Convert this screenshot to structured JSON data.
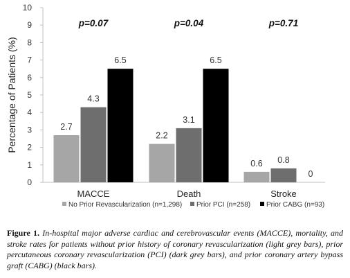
{
  "chart_data": {
    "type": "bar",
    "categories": [
      "MACCE",
      "Death",
      "Stroke"
    ],
    "series": [
      {
        "name": "No Prior Revascularization (n=1,298)",
        "values": [
          2.7,
          2.2,
          0.6
        ],
        "color": "#a6a6a6"
      },
      {
        "name": "Prior PCI (n=258)",
        "values": [
          4.3,
          3.1,
          0.8
        ],
        "color": "#6e6e6e"
      },
      {
        "name": "Prior CABG (n=93)",
        "values": [
          6.5,
          6.5,
          0
        ],
        "color": "#000000"
      }
    ],
    "data_labels": [
      [
        "2.7",
        "2.2",
        "0.6"
      ],
      [
        "4.3",
        "3.1",
        "0.8"
      ],
      [
        "6.5",
        "6.5",
        "0"
      ]
    ],
    "p_values": [
      "p=0.07",
      "p=0.04",
      "p=0.71"
    ],
    "ylabel": "Percentage of Patients (%)",
    "xlabel": "",
    "ylim": [
      0,
      10
    ],
    "yticks": [
      0,
      1,
      2,
      3,
      4,
      5,
      6,
      7,
      8,
      9,
      10
    ],
    "legend_position": "bottom",
    "grid": false
  },
  "caption": {
    "label": "Figure 1.",
    "text": "In-hospital major adverse cardiac and cerebrovascular events (MACCE), mortality, and stroke rates for patients without prior history of coronary revascularization (light grey bars), prior percutaneous coronary revascularization (PCI) (dark grey bars), and prior coronary artery bypass graft (CABG) (black bars)."
  }
}
